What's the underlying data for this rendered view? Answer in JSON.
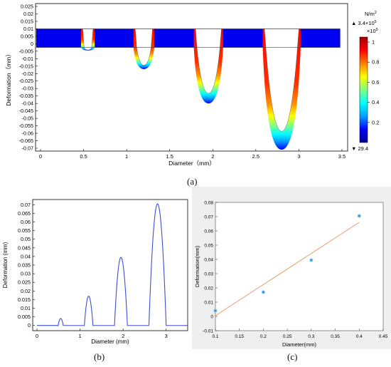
{
  "captions": {
    "a": "(a)",
    "b": "(b)",
    "c": "(c)"
  },
  "chart_data": [
    {
      "type": "heatmap",
      "xlabel": "Diameter（mm）",
      "ylabel": "Deformation（mm）",
      "xlim": [
        0,
        3.5
      ],
      "ylim": [
        -0.07,
        0.025
      ],
      "xticks": [
        "0",
        "0.5",
        "1",
        "1.5",
        "2",
        "2.5",
        "3",
        "3.5"
      ],
      "yticks": [
        "0.025",
        "0.02",
        "0.015",
        "0.01",
        "0.005",
        "0",
        "-0.005",
        "-0.01",
        "-0.015",
        "-0.02",
        "-0.025",
        "-0.03",
        "-0.035",
        "-0.04",
        "-0.045",
        "-0.05",
        "-0.055",
        "-0.06",
        "-0.065",
        "-0.07"
      ],
      "plate": {
        "top": 0.01,
        "bottom": -0.0025,
        "xmin": -0.05,
        "xmax": 3.48
      },
      "holes": [
        {
          "center": 0.55,
          "width": 0.12,
          "depth": -0.0045
        },
        {
          "center": 1.2,
          "width": 0.2,
          "depth": -0.017
        },
        {
          "center": 1.95,
          "width": 0.3,
          "depth": -0.04
        },
        {
          "center": 2.8,
          "width": 0.4,
          "depth": -0.071
        }
      ],
      "colorbar": {
        "unit": "N/m",
        "unit_sup": "2",
        "max_label": "▲ 3.4×10",
        "max_sup": "5",
        "scale_label": "×10",
        "scale_sup": "5",
        "ticks": [
          "1",
          "0.8",
          "0.6",
          "0.4",
          "0.2"
        ],
        "tick_values": [
          1,
          0.8,
          0.6,
          0.4,
          0.2
        ],
        "range": [
          0.000294,
          1.05
        ],
        "min_label": "▼ 29.4",
        "colors": [
          "#00008f",
          "#0000ff",
          "#00a0ff",
          "#00ffff",
          "#80ff80",
          "#ffff00",
          "#ff8000",
          "#ff0000",
          "#a00000"
        ]
      }
    },
    {
      "type": "line",
      "xlabel": "Diameter (mm)",
      "ylabel": "Deformation (mm)",
      "xlim": [
        -0.1,
        3.5
      ],
      "ylim": [
        -0.003,
        0.073
      ],
      "xticks": [
        "0",
        "1",
        "2",
        "3"
      ],
      "xtick_values": [
        0,
        1,
        2,
        3
      ],
      "yticks": [
        "0.07",
        "0.065",
        "0.06",
        "0.055",
        "0.05",
        "0.045",
        "0.04",
        "0.035",
        "0.03",
        "0.025",
        "0.02",
        "0.015",
        "0.01",
        "0.005",
        "0"
      ],
      "ytick_values": [
        0.07,
        0.065,
        0.06,
        0.055,
        0.05,
        0.045,
        0.04,
        0.035,
        0.03,
        0.025,
        0.02,
        0.015,
        0.01,
        0.005,
        0
      ],
      "peaks": [
        {
          "center": 0.55,
          "width": 0.12,
          "height": 0.004
        },
        {
          "center": 1.2,
          "width": 0.2,
          "height": 0.017
        },
        {
          "center": 1.95,
          "width": 0.3,
          "height": 0.0395
        },
        {
          "center": 2.8,
          "width": 0.4,
          "height": 0.0705
        }
      ],
      "color": "#3c4fd8"
    },
    {
      "type": "scatter",
      "xlabel": "Diameter(mm)",
      "ylabel": "Deformation(mm)",
      "xlim": [
        0.1,
        0.45
      ],
      "ylim": [
        -0.01,
        0.08
      ],
      "xticks": [
        "0.1",
        "0.15",
        "0.2",
        "0.25",
        "0.3",
        "0.35",
        "0.4",
        "0.45"
      ],
      "xtick_values": [
        0.1,
        0.15,
        0.2,
        0.25,
        0.3,
        0.35,
        0.4,
        0.45
      ],
      "yticks": [
        "0.08",
        "0.07",
        "0.06",
        "0.05",
        "0.04",
        "0.03",
        "0.02",
        "0.01",
        "0",
        "-0.01"
      ],
      "ytick_values": [
        0.08,
        0.07,
        0.06,
        0.05,
        0.04,
        0.03,
        0.02,
        0.01,
        0,
        -0.01
      ],
      "points": [
        {
          "x": 0.1,
          "y": 0.004
        },
        {
          "x": 0.2,
          "y": 0.017
        },
        {
          "x": 0.3,
          "y": 0.0395
        },
        {
          "x": 0.4,
          "y": 0.0705
        }
      ],
      "fit": {
        "x": [
          0.1,
          0.4
        ],
        "y": [
          0.0005,
          0.066
        ]
      },
      "point_color": "#2f8fd8",
      "fit_color": "#e39a6e"
    }
  ]
}
